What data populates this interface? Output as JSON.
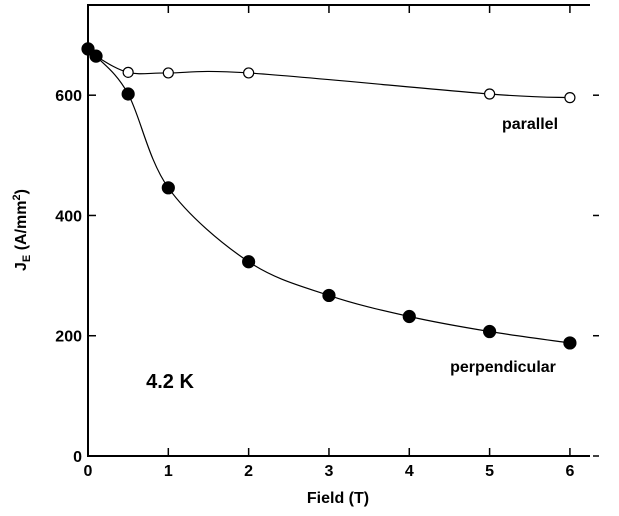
{
  "chart_data": {
    "type": "line",
    "x_label": "Field (T)",
    "y_label_parts": [
      "J",
      "E",
      " (A/mm",
      "2",
      ")"
    ],
    "annotations": [
      "parallel",
      "perpendicular",
      "4.2 K"
    ],
    "xlim": [
      0,
      6.25
    ],
    "ylim": [
      0,
      750
    ],
    "xticks": [
      0,
      1,
      2,
      3,
      4,
      5,
      6
    ],
    "yticks": [
      0,
      200,
      400,
      600
    ],
    "series": [
      {
        "name": "parallel",
        "color": "#000000",
        "marker": "open",
        "x": [
          0,
          0.1,
          0.5,
          1,
          2,
          5,
          6
        ],
        "values": [
          677,
          665,
          638,
          637,
          637,
          602,
          596
        ]
      },
      {
        "name": "perpendicular",
        "color": "#000000",
        "marker": "filled",
        "x": [
          0,
          0.1,
          0.5,
          1,
          2,
          3,
          4,
          5,
          6
        ],
        "values": [
          677,
          665,
          602,
          446,
          323,
          267,
          232,
          207,
          188
        ]
      }
    ]
  }
}
